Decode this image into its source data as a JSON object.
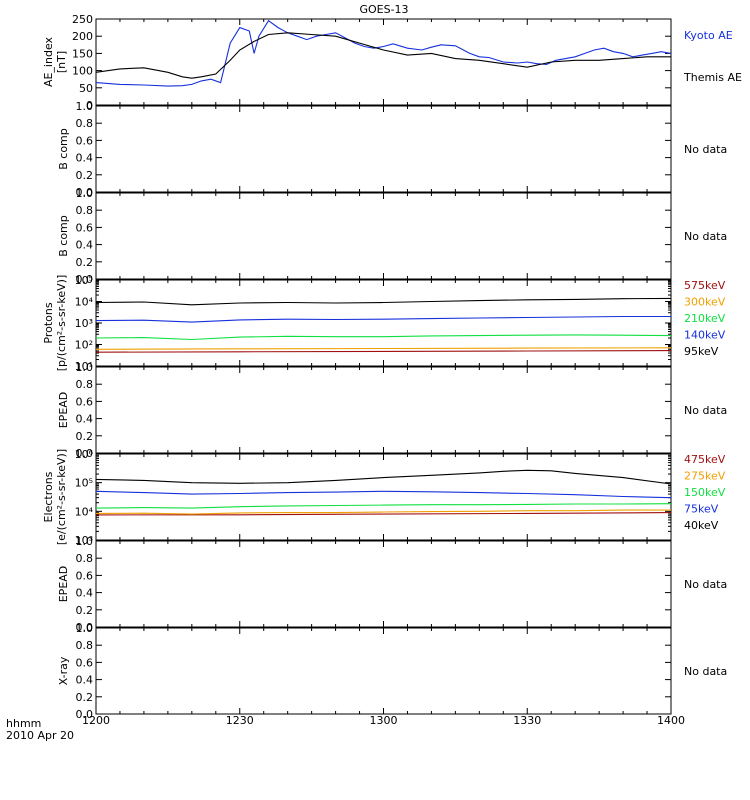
{
  "title": "GOES-13",
  "x_axis": {
    "ticks": [
      "1200",
      "1230",
      "1300",
      "1330",
      "1400"
    ],
    "caption_line1": "hhmm",
    "caption_line2": "2010 Apr 20"
  },
  "colors": {
    "black": "#000000",
    "blue": "#1530dc",
    "green": "#10e040",
    "orange": "#f0a000",
    "darkred": "#a01010"
  },
  "chart_data": [
    {
      "type": "line",
      "ylabel": [
        "AE_index",
        "[nT]"
      ],
      "ylim": [
        0,
        250
      ],
      "yscale": "linear",
      "yticks": [
        0,
        50,
        100,
        150,
        200,
        250
      ],
      "ytick_labels": [
        "0",
        "50",
        "100",
        "150",
        "200",
        "250"
      ],
      "series": [
        {
          "name": "Kyoto AE",
          "color": "#1530dc",
          "x": [
            1200,
            1205,
            1210,
            1215,
            1218,
            1220,
            1222,
            1224,
            1226,
            1228,
            1230,
            1232,
            1233,
            1234,
            1236,
            1238,
            1240,
            1242,
            1244,
            1246,
            1248,
            1250,
            1252,
            1254,
            1256,
            1258,
            1300,
            1302,
            1305,
            1308,
            1310,
            1312,
            1315,
            1318,
            1320,
            1322,
            1325,
            1328,
            1330,
            1332,
            1334,
            1336,
            1338,
            1340,
            1342,
            1344,
            1346,
            1348,
            1350,
            1352,
            1354,
            1356,
            1358,
            1400
          ],
          "values": [
            65,
            60,
            58,
            55,
            56,
            60,
            70,
            75,
            65,
            180,
            225,
            215,
            150,
            200,
            245,
            225,
            210,
            200,
            190,
            200,
            205,
            210,
            195,
            180,
            170,
            165,
            170,
            178,
            165,
            160,
            168,
            175,
            172,
            150,
            140,
            138,
            125,
            122,
            125,
            120,
            118,
            130,
            135,
            140,
            150,
            160,
            165,
            155,
            150,
            140,
            145,
            150,
            155,
            150
          ]
        },
        {
          "name": "Themis AE",
          "color": "#000000",
          "x": [
            1200,
            1205,
            1210,
            1215,
            1218,
            1220,
            1222,
            1225,
            1228,
            1230,
            1233,
            1236,
            1240,
            1245,
            1250,
            1255,
            1300,
            1305,
            1310,
            1315,
            1320,
            1325,
            1330,
            1335,
            1340,
            1345,
            1350,
            1355,
            1400
          ],
          "values": [
            95,
            105,
            108,
            95,
            82,
            78,
            82,
            90,
            130,
            160,
            185,
            205,
            210,
            205,
            200,
            180,
            160,
            145,
            150,
            135,
            130,
            120,
            110,
            125,
            130,
            130,
            135,
            140,
            140
          ]
        }
      ]
    },
    {
      "type": "line",
      "ylabel": [
        "B comp"
      ],
      "ylim": [
        0,
        1
      ],
      "yscale": "linear",
      "yticks": [
        0,
        0.2,
        0.4,
        0.6,
        0.8,
        1.0
      ],
      "ytick_labels": [
        "0.0",
        "0.2",
        "0.4",
        "0.6",
        "0.8",
        "1.0"
      ],
      "note": "No data",
      "series": []
    },
    {
      "type": "line",
      "ylabel": [
        "B comp"
      ],
      "ylim": [
        0,
        1
      ],
      "yscale": "linear",
      "yticks": [
        0,
        0.2,
        0.4,
        0.6,
        0.8,
        1.0
      ],
      "ytick_labels": [
        "0.0",
        "0.2",
        "0.4",
        "0.6",
        "0.8",
        "1.0"
      ],
      "note": "No data",
      "series": []
    },
    {
      "type": "line",
      "ylabel": [
        "Protons",
        "[p/(cm²-s-sr-keV)]"
      ],
      "ylim": [
        10,
        100000
      ],
      "yscale": "log",
      "yticks": [
        10,
        100,
        1000,
        10000,
        100000
      ],
      "ytick_labels": [
        "10¹",
        "10²",
        "10³",
        "10⁴",
        "10⁵"
      ],
      "series": [
        {
          "name": "575keV",
          "color": "#a01010",
          "x": [
            1200,
            1230,
            1300,
            1330,
            1400
          ],
          "values": [
            44,
            46,
            48,
            50,
            52
          ]
        },
        {
          "name": "300keV",
          "color": "#f0a000",
          "x": [
            1200,
            1230,
            1300,
            1330,
            1400
          ],
          "values": [
            60,
            63,
            65,
            68,
            70
          ]
        },
        {
          "name": "210keV",
          "color": "#10e040",
          "x": [
            1200,
            1210,
            1220,
            1230,
            1240,
            1250,
            1300,
            1310,
            1320,
            1330,
            1340,
            1350,
            1400
          ],
          "values": [
            200,
            210,
            170,
            220,
            240,
            230,
            230,
            250,
            260,
            270,
            280,
            270,
            260
          ]
        },
        {
          "name": "140keV",
          "color": "#1530dc",
          "x": [
            1200,
            1210,
            1220,
            1230,
            1240,
            1250,
            1300,
            1310,
            1320,
            1330,
            1340,
            1350,
            1400
          ],
          "values": [
            1300,
            1350,
            1100,
            1400,
            1500,
            1450,
            1500,
            1600,
            1700,
            1800,
            1900,
            2000,
            2000
          ]
        },
        {
          "name": "95keV",
          "color": "#000000",
          "x": [
            1200,
            1210,
            1220,
            1230,
            1240,
            1250,
            1300,
            1310,
            1320,
            1330,
            1340,
            1350,
            1400
          ],
          "values": [
            9000,
            9500,
            7000,
            8500,
            9000,
            8500,
            9000,
            10000,
            11000,
            12000,
            12500,
            13500,
            14000
          ]
        }
      ]
    },
    {
      "type": "line",
      "ylabel": [
        "EPEAD"
      ],
      "ylim": [
        0,
        1
      ],
      "yscale": "linear",
      "yticks": [
        0,
        0.2,
        0.4,
        0.6,
        0.8,
        1.0
      ],
      "ytick_labels": [
        "0.0",
        "0.2",
        "0.4",
        "0.6",
        "0.8",
        "1.0"
      ],
      "note": "No data",
      "series": []
    },
    {
      "type": "line",
      "ylabel": [
        "Electrons",
        "[e/(cm²-s-sr-keV)]"
      ],
      "ylim": [
        1000,
        1000000
      ],
      "yscale": "log",
      "yticks": [
        1000,
        10000,
        100000,
        1000000
      ],
      "ytick_labels": [
        "10³",
        "10⁴",
        "10⁵",
        "10⁶"
      ],
      "series": [
        {
          "name": "475keV",
          "color": "#a01010",
          "x": [
            1200,
            1230,
            1300,
            1330,
            1400
          ],
          "values": [
            7500,
            7600,
            8000,
            8500,
            9000
          ]
        },
        {
          "name": "275keV",
          "color": "#f0a000",
          "x": [
            1200,
            1210,
            1220,
            1230,
            1240,
            1250,
            1300,
            1310,
            1320,
            1330,
            1340,
            1350,
            1400
          ],
          "values": [
            8500,
            8600,
            8000,
            8800,
            9000,
            9000,
            9500,
            9800,
            10000,
            10500,
            10500,
            11000,
            11000
          ]
        },
        {
          "name": "150keV",
          "color": "#10e040",
          "x": [
            1200,
            1210,
            1220,
            1230,
            1240,
            1250,
            1300,
            1310,
            1320,
            1330,
            1340,
            1350,
            1400
          ],
          "values": [
            13000,
            13500,
            13000,
            14500,
            15500,
            16000,
            16500,
            17000,
            17000,
            17500,
            18000,
            18000,
            18500
          ]
        },
        {
          "name": "75keV",
          "color": "#1530dc",
          "x": [
            1200,
            1210,
            1220,
            1230,
            1240,
            1250,
            1300,
            1310,
            1320,
            1330,
            1340,
            1350,
            1400
          ],
          "values": [
            50000,
            45000,
            40000,
            42000,
            45000,
            47000,
            50000,
            48000,
            45000,
            42000,
            38000,
            33000,
            30000
          ]
        },
        {
          "name": "40keV",
          "color": "#000000",
          "x": [
            1200,
            1210,
            1220,
            1230,
            1240,
            1250,
            1300,
            1310,
            1320,
            1325,
            1330,
            1335,
            1340,
            1350,
            1400
          ],
          "values": [
            130000,
            120000,
            100000,
            95000,
            100000,
            120000,
            150000,
            180000,
            220000,
            250000,
            270000,
            260000,
            210000,
            150000,
            90000
          ]
        }
      ]
    },
    {
      "type": "line",
      "ylabel": [
        "EPEAD"
      ],
      "ylim": [
        0,
        1
      ],
      "yscale": "linear",
      "yticks": [
        0,
        0.2,
        0.4,
        0.6,
        0.8,
        1.0
      ],
      "ytick_labels": [
        "0.0",
        "0.2",
        "0.4",
        "0.6",
        "0.8",
        "1.0"
      ],
      "note": "No data",
      "series": []
    },
    {
      "type": "line",
      "ylabel": [
        "X-ray"
      ],
      "ylim": [
        0,
        1
      ],
      "yscale": "linear",
      "yticks": [
        0,
        0.2,
        0.4,
        0.6,
        0.8,
        1.0
      ],
      "ytick_labels": [
        "0.0",
        "0.2",
        "0.4",
        "0.6",
        "0.8",
        "1.0"
      ],
      "note": "No data",
      "series": []
    }
  ]
}
